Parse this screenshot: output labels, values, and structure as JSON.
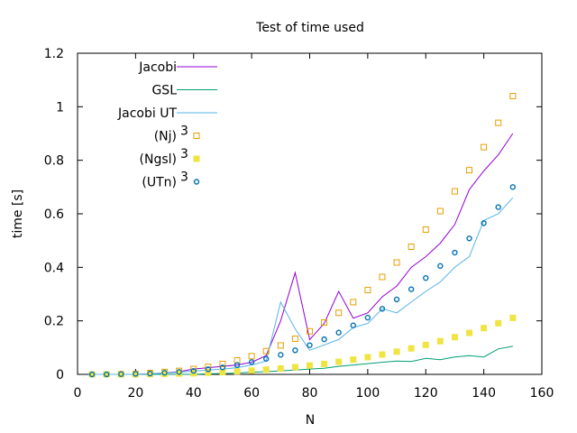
{
  "chart_data": {
    "type": "line",
    "title": "Test of time used",
    "xlabel": "N",
    "ylabel": "time [s]",
    "xlim": [
      0,
      160
    ],
    "ylim": [
      0,
      1.2
    ],
    "xticks": [
      0,
      20,
      40,
      60,
      80,
      100,
      120,
      140,
      160
    ],
    "yticks": [
      0,
      0.2,
      0.4,
      0.6,
      0.8,
      1,
      1.2
    ],
    "xtick_labels": [
      "0",
      "20",
      "40",
      "60",
      "80",
      "100",
      "120",
      "140",
      "160"
    ],
    "ytick_labels": [
      "0",
      "0.2",
      "0.4",
      "0.6",
      "0.8",
      "1",
      "1.2"
    ],
    "grid": false,
    "legend_position": "top-left",
    "x": [
      5,
      10,
      15,
      20,
      25,
      30,
      35,
      40,
      45,
      50,
      55,
      60,
      65,
      70,
      75,
      80,
      85,
      90,
      95,
      100,
      105,
      110,
      115,
      120,
      125,
      130,
      135,
      140,
      145,
      150
    ],
    "series": [
      {
        "name": "Jacobi",
        "style": "line",
        "color": "#9400d3",
        "values": [
          0,
          0,
          0,
          0,
          0.002,
          0.005,
          0.01,
          0.02,
          0.025,
          0.03,
          0.035,
          0.045,
          0.07,
          0.2,
          0.38,
          0.13,
          0.19,
          0.31,
          0.21,
          0.23,
          0.29,
          0.33,
          0.4,
          0.44,
          0.49,
          0.56,
          0.69,
          0.76,
          0.82,
          0.9
        ]
      },
      {
        "name": "GSL",
        "style": "line",
        "color": "#009e73",
        "values": [
          0,
          0,
          0,
          0,
          0,
          0,
          0,
          0,
          0.002,
          0.003,
          0.005,
          0.008,
          0.01,
          0.013,
          0.016,
          0.02,
          0.023,
          0.03,
          0.035,
          0.04,
          0.045,
          0.05,
          0.048,
          0.06,
          0.055,
          0.065,
          0.07,
          0.065,
          0.095,
          0.105
        ]
      },
      {
        "name": "Jacobi UT",
        "style": "line",
        "color": "#56b4e9",
        "values": [
          0,
          0,
          0,
          0,
          0.002,
          0.004,
          0.008,
          0.012,
          0.016,
          0.02,
          0.025,
          0.035,
          0.05,
          0.27,
          0.17,
          0.09,
          0.11,
          0.13,
          0.175,
          0.19,
          0.245,
          0.23,
          0.27,
          0.31,
          0.345,
          0.4,
          0.44,
          0.575,
          0.6,
          0.66
        ]
      },
      {
        "name": "(Nj)",
        "superscript": "3",
        "style": "open-square",
        "color": "#e69f00",
        "values": [
          0,
          0,
          0.001,
          0.002,
          0.005,
          0.009,
          0.013,
          0.02,
          0.028,
          0.039,
          0.052,
          0.068,
          0.087,
          0.108,
          0.133,
          0.161,
          0.194,
          0.23,
          0.27,
          0.315,
          0.364,
          0.418,
          0.477,
          0.541,
          0.61,
          0.684,
          0.763,
          0.849,
          0.94,
          1.04
        ]
      },
      {
        "name": "(Ngsl)",
        "superscript": "3",
        "style": "filled-square",
        "color": "#f0e442",
        "values": [
          0,
          0,
          0,
          0,
          0.001,
          0.002,
          0.003,
          0.004,
          0.006,
          0.008,
          0.011,
          0.014,
          0.018,
          0.022,
          0.027,
          0.033,
          0.039,
          0.047,
          0.055,
          0.064,
          0.074,
          0.085,
          0.097,
          0.11,
          0.124,
          0.139,
          0.155,
          0.173,
          0.191,
          0.211
        ]
      },
      {
        "name": "(UTn)",
        "superscript": "3",
        "style": "open-circle",
        "color": "#0072b2",
        "values": [
          0,
          0,
          0.001,
          0.002,
          0.003,
          0.006,
          0.009,
          0.013,
          0.019,
          0.026,
          0.035,
          0.046,
          0.058,
          0.073,
          0.09,
          0.109,
          0.131,
          0.156,
          0.183,
          0.212,
          0.245,
          0.28,
          0.318,
          0.36,
          0.405,
          0.455,
          0.508,
          0.565,
          0.625,
          0.7
        ]
      }
    ]
  }
}
